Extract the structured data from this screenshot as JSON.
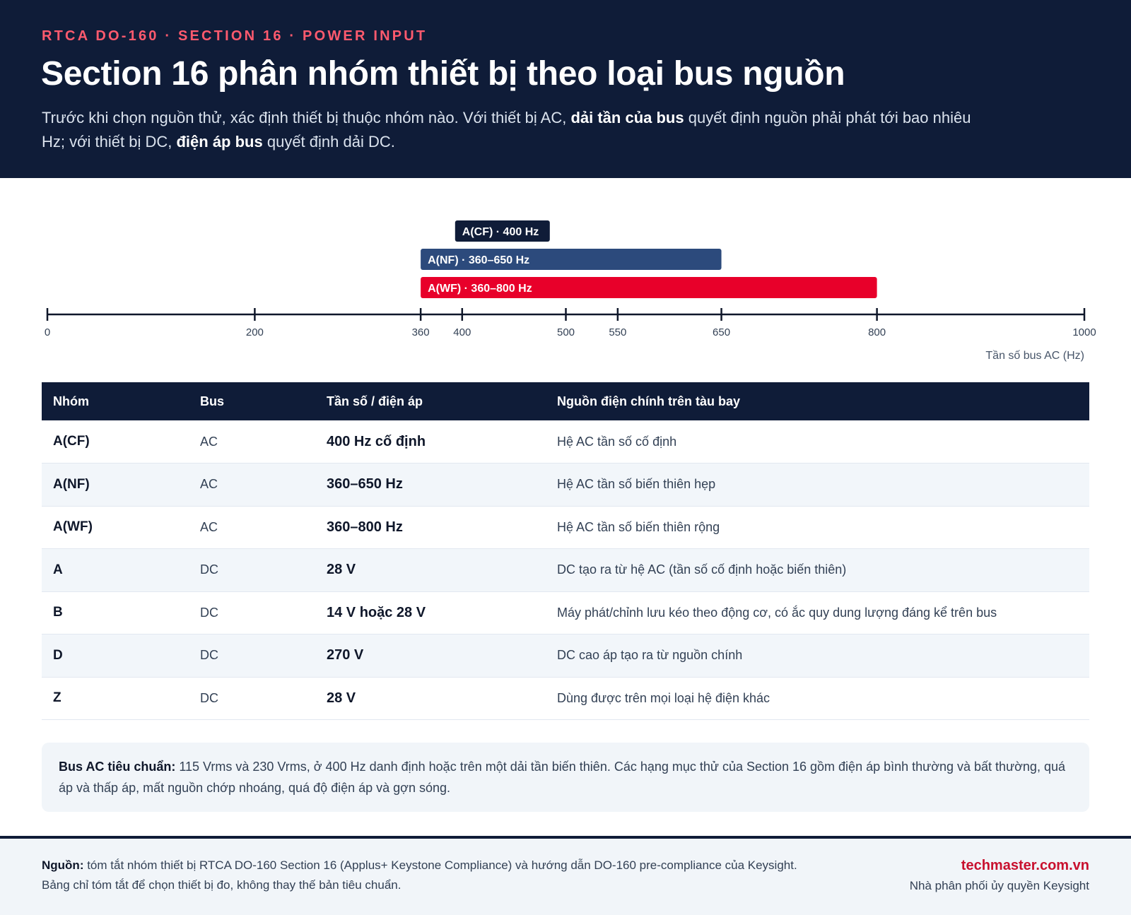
{
  "header": {
    "eyebrow": "RTCA DO-160 · SECTION 16 · POWER INPUT",
    "title": "Section 16 phân nhóm thiết bị theo loại bus nguồn",
    "lede_part1": "Trước khi chọn nguồn thử, xác định thiết bị thuộc nhóm nào. Với thiết bị AC, ",
    "lede_bold1": "dải tần của bus",
    "lede_part2": " quyết định nguồn phải phát tới bao nhiêu Hz; với thiết bị DC, ",
    "lede_bold2": "điện áp bus",
    "lede_part3": " quyết định dải DC."
  },
  "chart_data": {
    "type": "range-bar",
    "xlabel": "Tần số bus AC (Hz)",
    "xlim": [
      0,
      1000
    ],
    "ticks": [
      0,
      200,
      360,
      400,
      500,
      550,
      650,
      800,
      1000
    ],
    "ranges": [
      {
        "label": "A(CF) · 400 Hz",
        "start": 400,
        "end": 400,
        "color": "#0f1c38"
      },
      {
        "label": "A(NF) · 360–650 Hz",
        "start": 360,
        "end": 650,
        "color": "#2c4a7c"
      },
      {
        "label": "A(WF) · 360–800 Hz",
        "start": 360,
        "end": 800,
        "color": "#e8002a"
      }
    ]
  },
  "table": {
    "headers": [
      "Nhóm",
      "Bus",
      "Tần số / điện áp",
      "Nguồn điện chính trên tàu bay"
    ],
    "rows": [
      [
        "A(CF)",
        "AC",
        "400 Hz cố định",
        "Hệ AC tần số cố định"
      ],
      [
        "A(NF)",
        "AC",
        "360–650 Hz",
        "Hệ AC tần số biến thiên hẹp"
      ],
      [
        "A(WF)",
        "AC",
        "360–800 Hz",
        "Hệ AC tần số biến thiên rộng"
      ],
      [
        "A",
        "DC",
        "28 V",
        "DC tạo ra từ hệ AC (tần số cố định hoặc biến thiên)"
      ],
      [
        "B",
        "DC",
        "14 V hoặc 28 V",
        "Máy phát/chỉnh lưu kéo theo động cơ, có ắc quy dung lượng đáng kể trên bus"
      ],
      [
        "D",
        "DC",
        "270 V",
        "DC cao áp tạo ra từ nguồn chính"
      ],
      [
        "Z",
        "DC",
        "28 V",
        "Dùng được trên mọi loại hệ điện khác"
      ]
    ]
  },
  "note": {
    "bold": "Bus AC tiêu chuẩn:",
    "text": " 115 Vrms và 230 Vrms, ở 400 Hz danh định hoặc trên một dải tần biến thiên. Các hạng mục thử của Section 16 gồm điện áp bình thường và bất thường, quá áp và thấp áp, mất nguồn chớp nhoáng, quá độ điện áp và gợn sóng."
  },
  "footer": {
    "source_bold": "Nguồn:",
    "source_text": " tóm tắt nhóm thiết bị RTCA DO-160 Section 16 (Applus+ Keystone Compliance) và hướng dẫn DO-160 pre-compliance của Keysight. Bảng chỉ tóm tắt để chọn thiết bị đo, không thay thế bản tiêu chuẩn.",
    "brand": "techmaster.com.vn",
    "brand_sub": "Nhà phân phối ủy quyền Keysight"
  }
}
